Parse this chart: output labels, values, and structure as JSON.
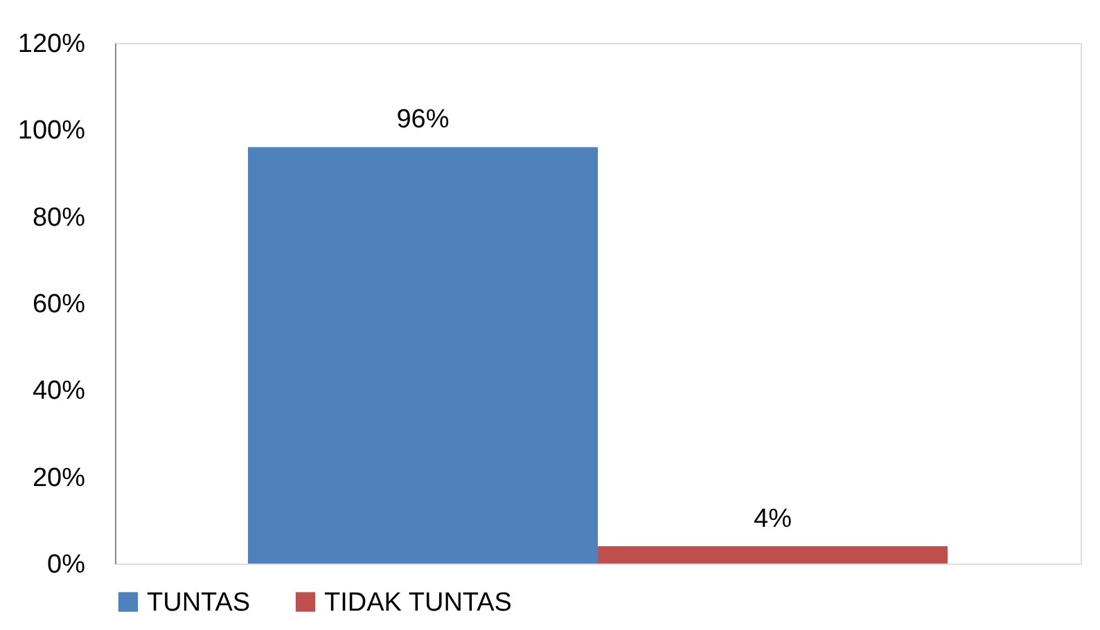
{
  "chart_data": {
    "type": "bar",
    "categories": [
      null
    ],
    "series": [
      {
        "name": "TUNTAS",
        "color": "#4f81bd",
        "values": [
          96
        ],
        "value_labels": [
          "96%"
        ]
      },
      {
        "name": "TIDAK TUNTAS",
        "color": "#c0504d",
        "values": [
          4
        ],
        "value_labels": [
          "4%"
        ]
      }
    ],
    "ylim": [
      0,
      120
    ],
    "yticks": [
      {
        "value": 0,
        "label": "0%"
      },
      {
        "value": 20,
        "label": "20%"
      },
      {
        "value": 40,
        "label": "40%"
      },
      {
        "value": 60,
        "label": "60%"
      },
      {
        "value": 80,
        "label": "80%"
      },
      {
        "value": 100,
        "label": "100%"
      },
      {
        "value": 120,
        "label": "120%"
      }
    ],
    "grid": false,
    "legend": "bottom"
  }
}
